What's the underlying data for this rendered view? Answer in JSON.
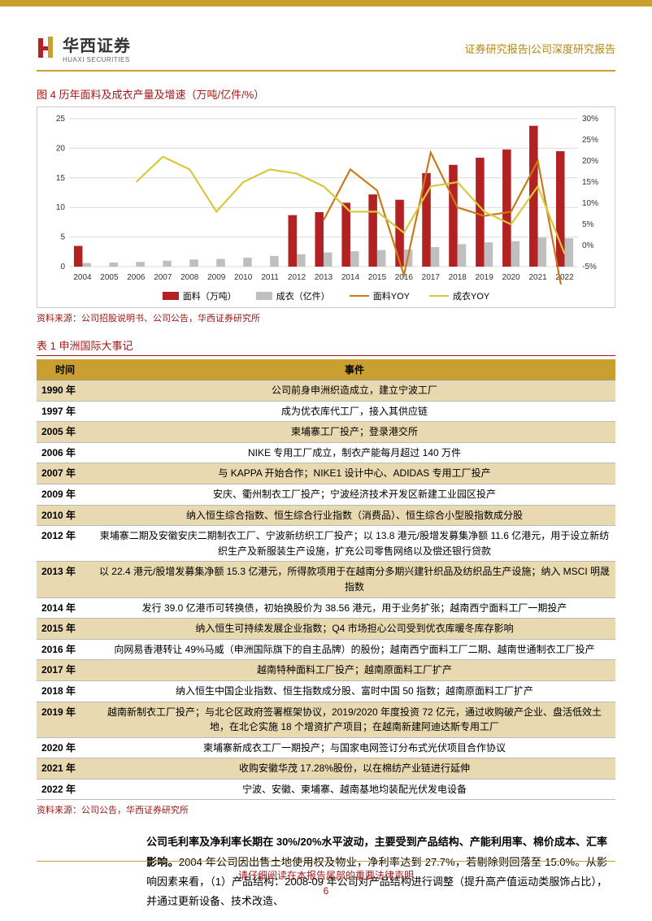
{
  "header": {
    "logo_cn": "华西证券",
    "logo_en": "HUAXI SECURITIES",
    "right": "证券研究报告|公司深度研究报告"
  },
  "chart": {
    "title": "图 4 历年面料及成衣产量及增速（万吨/亿件/%）",
    "source": "资料来源：公司招股说明书、公司公告，华西证券研究所",
    "type": "combo-bar-line",
    "categories": [
      "2004",
      "2005",
      "2006",
      "2007",
      "2008",
      "2009",
      "2010",
      "2011",
      "2012",
      "2013",
      "2014",
      "2015",
      "2016",
      "2017",
      "2018",
      "2019",
      "2020",
      "2021",
      "2022"
    ],
    "series": {
      "fabric_bar": {
        "label": "面料（万吨）",
        "color": "#b22222",
        "values": [
          3.5,
          0,
          0,
          0,
          0,
          0,
          0,
          0,
          8.7,
          9.2,
          10.8,
          12.2,
          11.3,
          15.8,
          17.2,
          18.4,
          19.8,
          23.8,
          19.5
        ]
      },
      "garment_bar": {
        "label": "成衣（亿件）",
        "color": "#bfbfbf",
        "values": [
          0.6,
          0.7,
          0.8,
          1.0,
          1.2,
          1.3,
          1.5,
          1.8,
          2.1,
          2.4,
          2.6,
          2.8,
          2.9,
          3.3,
          3.8,
          4.1,
          4.3,
          4.9,
          4.8
        ]
      },
      "fabric_yoy": {
        "label": "面料YOY",
        "color": "#c97a1a",
        "values": [
          null,
          null,
          null,
          null,
          null,
          null,
          null,
          null,
          null,
          6,
          18,
          13,
          -7,
          22,
          9,
          7,
          8,
          20,
          -14
        ]
      },
      "garment_yoy": {
        "label": "成衣YOY",
        "color": "#d9c83c",
        "values": [
          null,
          null,
          15,
          21,
          18,
          8,
          15,
          18,
          17,
          14,
          8,
          8,
          3,
          14,
          15,
          8,
          5,
          14,
          -2
        ]
      }
    },
    "y_left": {
      "min": 0,
      "max": 25,
      "step": 5
    },
    "y_right": {
      "min": -5,
      "max": 30,
      "step": 5
    },
    "grid_color": "#d9d9d9",
    "axis_fontsize": 10
  },
  "table": {
    "title": "表 1 申洲国际大事记",
    "columns": [
      "时间",
      "事件"
    ],
    "rows": [
      {
        "year": "1990 年",
        "event": "公司前身申洲织造成立，建立宁波工厂",
        "shade": true
      },
      {
        "year": "1997 年",
        "event": "成为优衣库代工厂，接入其供应链",
        "shade": false
      },
      {
        "year": "2005 年",
        "event": "柬埔寨工厂投产；登录港交所",
        "shade": true
      },
      {
        "year": "2006 年",
        "event": "NIKE 专用工厂成立，制衣产能每月超过 140 万件",
        "shade": false
      },
      {
        "year": "2007 年",
        "event": "与 KAPPA 开始合作；NIKE1 设计中心、ADIDAS 专用工厂投产",
        "shade": true
      },
      {
        "year": "2009 年",
        "event": "安庆、衢州制衣工厂投产；宁波经济技术开发区新建工业园区投产",
        "shade": false
      },
      {
        "year": "2010 年",
        "event": "纳入恒生综合指数、恒生综合行业指数（消费品）、恒生综合小型股指数成分股",
        "shade": true
      },
      {
        "year": "2012 年",
        "event": "柬埔寨二期及安徽安庆二期制衣工厂、宁波新纺织工厂投产；以 13.8 港元/股增发募集净额 11.6 亿港元，用于设立新纺织生产及新服装生产设施，扩充公司零售网络以及偿还银行贷款",
        "shade": false
      },
      {
        "year": "2013 年",
        "event": "以 22.4 港元/股增发募集净额 15.3 亿港元，所得款项用于在越南分多期兴建针织品及纺织品生产设施；纳入 MSCI 明晟指数",
        "shade": true
      },
      {
        "year": "2014 年",
        "event": "发行 39.0 亿港币可转换债，初始换股价为 38.56 港元，用于业务扩张；越南西宁面料工厂一期投产",
        "shade": false
      },
      {
        "year": "2015 年",
        "event": "纳入恒生可持续发展企业指数；Q4 市场担心公司受到优衣库暖冬库存影响",
        "shade": true
      },
      {
        "year": "2016 年",
        "event": "向网易香港转让 49%马威（申洲国际旗下的自主品牌）的股份；越南西宁面料工厂二期、越南世通制衣工厂投产",
        "shade": false
      },
      {
        "year": "2017 年",
        "event": "越南特种面料工厂投产；越南原面料工厂扩产",
        "shade": true
      },
      {
        "year": "2018 年",
        "event": "纳入恒生中国企业指数、恒生指数成分股、富时中国 50 指数；越南原面料工厂扩产",
        "shade": false
      },
      {
        "year": "2019 年",
        "event": "越南新制衣工厂投产；与北仑区政府签署框架协议，2019/2020 年度投资 72 亿元，通过收购破产企业、盘活低效土地，在北仑实施 18 个增资扩产项目；在越南新建阿迪达斯专用工厂",
        "shade": true
      },
      {
        "year": "2020 年",
        "event": "柬埔寨新成衣工厂一期投产；与国家电网签订分布式光伏项目合作协议",
        "shade": false
      },
      {
        "year": "2021 年",
        "event": "收购安徽华茂 17.28%股份，以在棉纺产业链进行延伸",
        "shade": true
      },
      {
        "year": "2022 年",
        "event": "宁波、安徽、柬埔寨、越南基地均装配光伏发电设备",
        "shade": false
      }
    ],
    "source": "资料来源：公司公告，华西证券研究所"
  },
  "body": {
    "bold": "公司毛利率及净利率长期在 30%/20%水平波动，主要受到产品结构、产能利用率、棉价成本、汇率影响。",
    "rest": "2004 年公司因出售土地使用权及物业，净利率达到 27.7%，若剔除则回落至 15.0%。从影响因素来看，（1）产品结构：2008-09 年公司对产品结构进行调整（提升高产值运动类服饰占比），并通过更新设备、技术改造、"
  },
  "footer": {
    "notice": "请仔细阅读在本报告尾部的重要法律声明",
    "page": "6"
  },
  "colors": {
    "gold": "#c9a030",
    "red": "#a01818",
    "bar_red": "#b22222",
    "bar_grey": "#bfbfbf",
    "line_orange": "#c97a1a",
    "line_yellow": "#d9c83c"
  }
}
